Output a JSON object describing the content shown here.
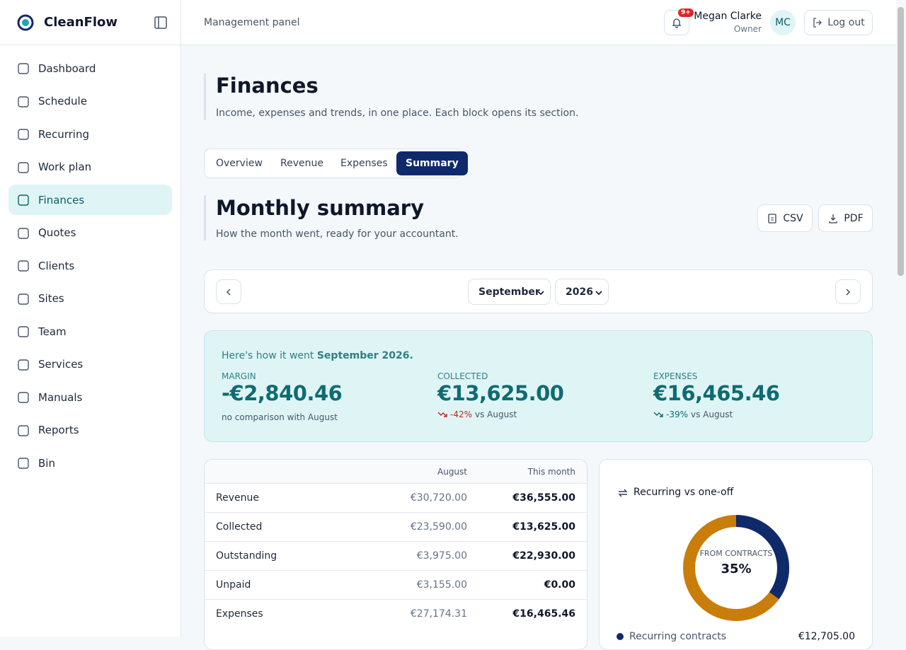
{
  "brand": "CleanFlow",
  "nav": [
    {
      "label": "Dashboard"
    },
    {
      "label": "Schedule"
    },
    {
      "label": "Recurring"
    },
    {
      "label": "Work plan"
    },
    {
      "label": "Finances",
      "active": true
    },
    {
      "label": "Quotes"
    },
    {
      "label": "Clients"
    },
    {
      "label": "Sites"
    },
    {
      "label": "Team"
    },
    {
      "label": "Services"
    },
    {
      "label": "Manuals"
    },
    {
      "label": "Reports"
    },
    {
      "label": "Bin"
    }
  ],
  "header": {
    "title": "Management panel",
    "badge": "9+",
    "user": "Megan Clarke",
    "role": "Owner",
    "initials": "MC",
    "logout": "Log out"
  },
  "page": {
    "title": "Finances",
    "subtitle": "Income, expenses and trends, in one place. Each block opens its section."
  },
  "tabs": [
    {
      "label": "Overview"
    },
    {
      "label": "Revenue"
    },
    {
      "label": "Expenses"
    },
    {
      "label": "Summary",
      "active": true
    }
  ],
  "section": {
    "title": "Monthly summary",
    "subtitle": "How the month went, ready for your accountant.",
    "buttons": [
      "CSV",
      "PDF"
    ]
  },
  "period": {
    "month": "September",
    "year": "2026"
  },
  "summary": {
    "intro": "Here's how it went",
    "period": "September 2026.",
    "kpis": [
      {
        "label": "MARGIN",
        "value": "-€2,840.46",
        "note": "no comparison with August"
      },
      {
        "label": "COLLECTED",
        "value": "€13,625.00",
        "change": "-42%",
        "note": "vs August",
        "tone": "negative"
      },
      {
        "label": "EXPENSES",
        "value": "€16,465.46",
        "change": "-39%",
        "note": "vs August",
        "tone": "positive"
      }
    ]
  },
  "table": {
    "columns": [
      "August",
      "This month"
    ],
    "rows": [
      [
        "Revenue",
        "€30,720.00",
        "€36,555.00"
      ],
      [
        "Collected",
        "€23,590.00",
        "€13,625.00"
      ],
      [
        "Outstanding",
        "€3,975.00",
        "€22,930.00"
      ],
      [
        "Unpaid",
        "€3,155.00",
        "€0.00"
      ],
      [
        "Expenses",
        "€27,174.31",
        "€16,465.46"
      ]
    ]
  },
  "donut": {
    "title": "Recurring vs one-off",
    "center_label": "FROM CONTRACTS",
    "value": 35,
    "value_label": "35%",
    "max": 100,
    "color": "#0f2a6b",
    "rest_color": "#c97d0a",
    "legend": [
      {
        "name": "Recurring contracts",
        "value": "€12,705.00"
      }
    ]
  }
}
